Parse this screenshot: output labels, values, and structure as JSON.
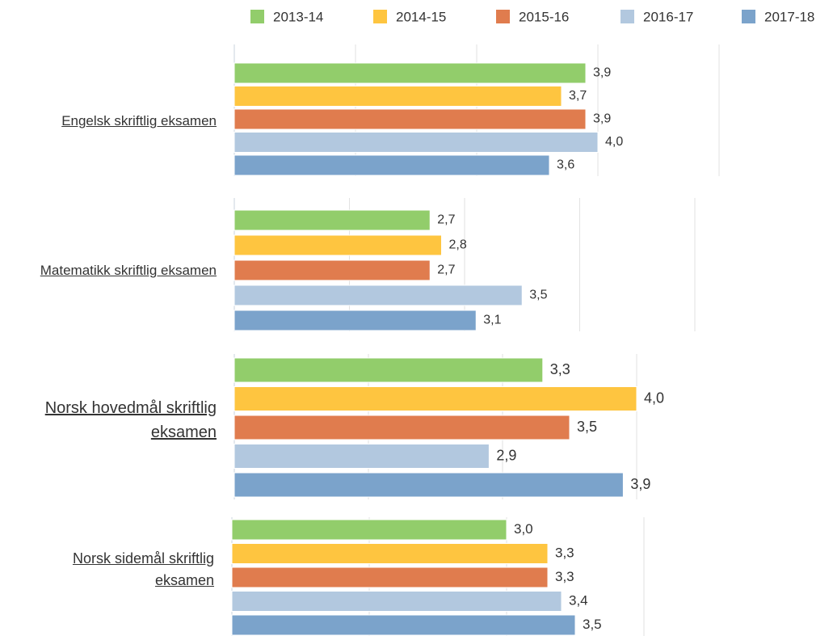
{
  "chart_data": [
    {
      "type": "bar",
      "orientation": "horizontal",
      "categories": [
        "Engelsk skriftlig eksamen"
      ],
      "xlim": [
        1,
        5
      ],
      "xticks": [
        1,
        2,
        3,
        4,
        5
      ],
      "grid": true,
      "legend": "top",
      "series": [
        {
          "name": "2013-14",
          "color": "#92cd6b",
          "values": [
            3.9
          ],
          "value_labels": [
            "3,9"
          ]
        },
        {
          "name": "2014-15",
          "color": "#fec540",
          "values": [
            3.7
          ],
          "value_labels": [
            "3,7"
          ]
        },
        {
          "name": "2015-16",
          "color": "#e07c4e",
          "values": [
            3.9
          ],
          "value_labels": [
            "3,9"
          ]
        },
        {
          "name": "2016-17",
          "color": "#b2c8df",
          "values": [
            4.0
          ],
          "value_labels": [
            "4,0"
          ]
        },
        {
          "name": "2017-18",
          "color": "#7ba3cb",
          "values": [
            3.6
          ],
          "value_labels": [
            "3,6"
          ]
        }
      ]
    },
    {
      "type": "bar",
      "orientation": "horizontal",
      "categories": [
        "Matematikk skriftlig eksamen"
      ],
      "xlim": [
        1,
        5
      ],
      "xticks": [
        1,
        2,
        3,
        4,
        5
      ],
      "grid": true,
      "series": [
        {
          "values": [
            2.7
          ],
          "value_labels": [
            "2,7"
          ]
        },
        {
          "values": [
            2.8
          ],
          "value_labels": [
            "2,8"
          ]
        },
        {
          "values": [
            2.7
          ],
          "value_labels": [
            "2,7"
          ]
        },
        {
          "values": [
            3.5
          ],
          "value_labels": [
            "3,5"
          ]
        },
        {
          "values": [
            3.1
          ],
          "value_labels": [
            "3,1"
          ]
        }
      ]
    },
    {
      "type": "bar",
      "orientation": "horizontal",
      "categories": [
        "Norsk hovedmål skriftlig eksamen"
      ],
      "xlim": [
        1,
        4
      ],
      "xticks": [
        1,
        2,
        3,
        4
      ],
      "grid": true,
      "series": [
        {
          "values": [
            3.3
          ],
          "value_labels": [
            "3,3"
          ]
        },
        {
          "values": [
            4.0
          ],
          "value_labels": [
            "4,0"
          ]
        },
        {
          "values": [
            3.5
          ],
          "value_labels": [
            "3,5"
          ]
        },
        {
          "values": [
            2.9
          ],
          "value_labels": [
            "2,9"
          ]
        },
        {
          "values": [
            3.9
          ],
          "value_labels": [
            "3,9"
          ]
        }
      ]
    },
    {
      "type": "bar",
      "orientation": "horizontal",
      "categories": [
        "Norsk sidemål skriftlig eksamen"
      ],
      "xlim": [
        1,
        4
      ],
      "xticks": [
        1,
        2,
        3,
        4
      ],
      "grid": true,
      "series": [
        {
          "values": [
            3.0
          ],
          "value_labels": [
            "3,0"
          ]
        },
        {
          "values": [
            3.3
          ],
          "value_labels": [
            "3,3"
          ]
        },
        {
          "values": [
            3.3
          ],
          "value_labels": [
            "3,3"
          ]
        },
        {
          "values": [
            3.4
          ],
          "value_labels": [
            "3,4"
          ]
        },
        {
          "values": [
            3.5
          ],
          "value_labels": [
            "3,5"
          ]
        }
      ]
    }
  ]
}
